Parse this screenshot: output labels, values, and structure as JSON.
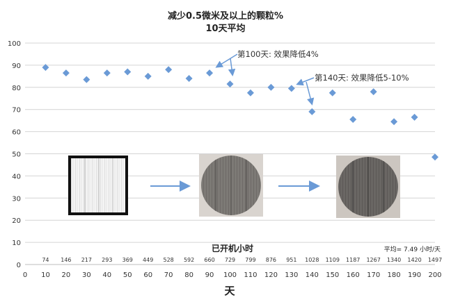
{
  "chart_data": {
    "type": "scatter",
    "title": "减少0.5微米及以上的颗粒%",
    "subtitle": "10天平均",
    "xlabel": "天",
    "xlim": [
      0,
      200
    ],
    "ylim": [
      0,
      100
    ],
    "xticks": [
      0,
      10,
      20,
      30,
      40,
      50,
      60,
      70,
      80,
      90,
      100,
      110,
      120,
      130,
      140,
      150,
      160,
      170,
      180,
      190,
      200
    ],
    "yticks": [
      0,
      10,
      20,
      30,
      40,
      50,
      60,
      70,
      80,
      90,
      100
    ],
    "grid": "horizontal",
    "marker_color": "#6a9ad6",
    "points": [
      {
        "x": 10,
        "y": 89
      },
      {
        "x": 20,
        "y": 86.5
      },
      {
        "x": 30,
        "y": 83.5
      },
      {
        "x": 40,
        "y": 86.5
      },
      {
        "x": 50,
        "y": 87
      },
      {
        "x": 60,
        "y": 85
      },
      {
        "x": 70,
        "y": 88
      },
      {
        "x": 80,
        "y": 84
      },
      {
        "x": 90,
        "y": 86.5
      },
      {
        "x": 100,
        "y": 81.5
      },
      {
        "x": 110,
        "y": 77.5
      },
      {
        "x": 120,
        "y": 80
      },
      {
        "x": 130,
        "y": 79.5
      },
      {
        "x": 140,
        "y": 69
      },
      {
        "x": 150,
        "y": 77.5
      },
      {
        "x": 160,
        "y": 65.5
      },
      {
        "x": 170,
        "y": 78
      },
      {
        "x": 180,
        "y": 64.5
      },
      {
        "x": 190,
        "y": 66.5
      },
      {
        "x": 200,
        "y": 48.5
      }
    ],
    "secondary_axis": {
      "label": "已开机小时",
      "values": [
        "74",
        "146",
        "217",
        "293",
        "369",
        "449",
        "528",
        "592",
        "660",
        "729",
        "799",
        "876",
        "951",
        "1028",
        "1109",
        "1187",
        "1267",
        "1340",
        "1420",
        "1497"
      ],
      "note": "平均= 7.49 小时/天"
    },
    "annotations": [
      {
        "text": "第100天: 效果降低4%"
      },
      {
        "text": "第140天: 效果降低5-10%"
      }
    ]
  },
  "arrow_color": "#6a9ad6"
}
